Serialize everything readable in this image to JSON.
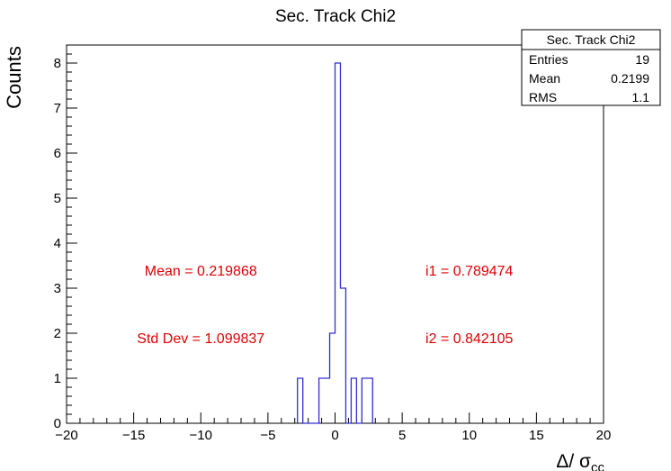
{
  "chart_data": {
    "type": "histogram",
    "title": "Sec. Track Chi2",
    "xlabel": "Δ/ σ",
    "xlabel_sub": "cc",
    "ylabel": "Counts",
    "xlim": [
      -20,
      20
    ],
    "ylim": [
      0,
      8.4
    ],
    "x_ticks": [
      -20,
      -15,
      -10,
      -5,
      0,
      5,
      10,
      15,
      20
    ],
    "x_tick_labels": [
      "−20",
      "−15",
      "−10",
      "−5",
      "0",
      "5",
      "10",
      "15",
      "20"
    ],
    "y_ticks": [
      0,
      1,
      2,
      3,
      4,
      5,
      6,
      7,
      8
    ],
    "y_tick_labels": [
      "0",
      "1",
      "2",
      "3",
      "4",
      "5",
      "6",
      "7",
      "8"
    ],
    "bin_width": 0.4,
    "bins": [
      {
        "x0": -2.8,
        "count": 1
      },
      {
        "x0": -2.4,
        "count": 0
      },
      {
        "x0": -2.0,
        "count": 0
      },
      {
        "x0": -1.6,
        "count": 0
      },
      {
        "x0": -1.2,
        "count": 1
      },
      {
        "x0": -0.8,
        "count": 1
      },
      {
        "x0": -0.4,
        "count": 2
      },
      {
        "x0": 0.0,
        "count": 8
      },
      {
        "x0": 0.4,
        "count": 3
      },
      {
        "x0": 0.8,
        "count": 0
      },
      {
        "x0": 1.2,
        "count": 1
      },
      {
        "x0": 1.6,
        "count": 0
      },
      {
        "x0": 2.0,
        "count": 1
      },
      {
        "x0": 2.4,
        "count": 1
      }
    ],
    "line_color": "#3030d0",
    "annotations": [
      {
        "text": "Mean = 0.219868",
        "x": -10,
        "y": 3.4
      },
      {
        "text": "Std Dev = 1.099837",
        "x": -10,
        "y": 1.9
      },
      {
        "text": "i1 = 0.789474",
        "x": 10,
        "y": 3.4
      },
      {
        "text": "i2 = 0.842105",
        "x": 10,
        "y": 1.9
      }
    ],
    "annotation_color": "#e00000"
  },
  "stats_box": {
    "title": "Sec. Track Chi2",
    "rows": [
      {
        "label": "Entries",
        "value": "19"
      },
      {
        "label": "Mean",
        "value": "0.2199"
      },
      {
        "label": "RMS",
        "value": "1.1"
      }
    ]
  }
}
